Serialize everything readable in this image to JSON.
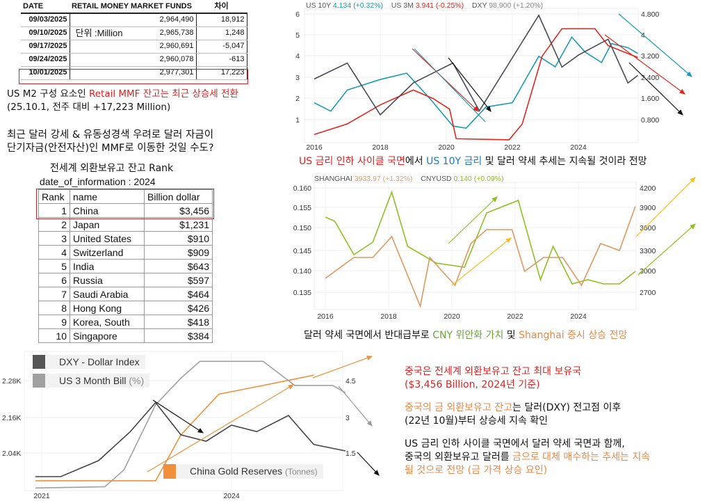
{
  "mmf_table": {
    "headers": [
      "DATE",
      "RETAIL MONEY MARKET FUNDS",
      "차이"
    ],
    "unit": "단위 :Million",
    "rows": [
      [
        "09/03/2025",
        "2,964,490",
        "18,912"
      ],
      [
        "09/10/2025",
        "2,965,738",
        "1,248"
      ],
      [
        "09/17/2025",
        "2,960,691",
        "-5,047"
      ],
      [
        "09/24/2025",
        "2,960,078",
        "-613"
      ],
      [
        "10/01/2025",
        "2,977,301",
        "17,223"
      ]
    ]
  },
  "note1": {
    "a": "US M2 구성 요소인 ",
    "b": "Retail MMF 잔고는 최근 상승세 전환",
    "c": "(25.10.1, 전주 대비 +17,223 Million)"
  },
  "note2": {
    "l1": "최근 달러 강세 & 유동성경색 우려로 달러 자금이",
    "l2": "단기자금(안전자산)인 MMF로 이동한 것일 수도?"
  },
  "rank_table": {
    "title": "전세계 외환보유고 잔고 Rank",
    "subtitle": "date_of_information : 2024",
    "headers": [
      "Rank",
      "name",
      "Billion dollar"
    ],
    "rows": [
      [
        "1",
        "China",
        "$3,456"
      ],
      [
        "2",
        "Japan",
        "$1,231"
      ],
      [
        "3",
        "United States",
        "$910"
      ],
      [
        "4",
        "Switzerland",
        "$909"
      ],
      [
        "5",
        "India",
        "$643"
      ],
      [
        "6",
        "Russia",
        "$597"
      ],
      [
        "7",
        "Saudi Arabia",
        "$464"
      ],
      [
        "8",
        "Hong Kong",
        "$426"
      ],
      [
        "9",
        "Korea, South",
        "$418"
      ],
      [
        "10",
        "Singapore",
        "$384"
      ]
    ]
  },
  "caption1": {
    "a": "US 금리 인하 사이클 국면",
    "b": "에서 ",
    "c": "US 10Y 금리",
    "d": " 및 달러 약세 추세는 지속될 것이라 전망"
  },
  "caption2": {
    "a": "달러 약세 국면에서 반대급부로 ",
    "b": "CNY 위안화 가치",
    "c": " 및 ",
    "d": "Shanghai 증시 상승 전망"
  },
  "right_notes": {
    "p1a": "중국은 전세계 외환보유고 잔고 최대 보유국",
    "p1b": "($3,456 Billion, 2024년 기준)",
    "p2a": "중국의 금 외환보유고 잔고",
    "p2b": "는 달러(DXY) 전고점 이후",
    "p2c": "(22년 10월)부터 상승세 지속 확인",
    "p3a": "US 금리 인하 사이클 국면에서 달러 약세 국면과 함께,",
    "p3b": "중국의 외환보유고 달러를 ",
    "p3c": "금으로 대체 매수하는 추세는 지속",
    "p3d": "될 것으로 전망 (금 가격 상승 요인)"
  },
  "colors": {
    "us10y": "#1a9bb0",
    "us3m": "#e0261e",
    "dxy": "#4a4a55",
    "cnyusd": "#8fbf24",
    "shanghai": "#e0975f",
    "gold": "#f0903c",
    "bill": "#a0a0a0",
    "dxy2": "#444444"
  },
  "chart_data": [
    {
      "type": "line",
      "legend": [
        {
          "name": "US 10Y",
          "value": "4.134",
          "change": "(+0.32%)"
        },
        {
          "name": "US 3M",
          "value": "3.941",
          "change": "(-0.25%)"
        },
        {
          "name": "DXY",
          "value": "98.900",
          "change": "(+1.20%)"
        }
      ],
      "yticks_left": [
        "6",
        "5",
        "4",
        "3",
        "2",
        "1"
      ],
      "yticks_right": [
        "4.800",
        "4",
        "3.200",
        "2.400",
        "1.600",
        "0.800"
      ],
      "xticks": [
        "2016",
        "2018",
        "2020",
        "2022",
        "2024"
      ],
      "series": [
        {
          "name": "US 10Y",
          "x": [
            2016,
            2016.5,
            2017,
            2018,
            2018.8,
            2019.5,
            2020.2,
            2020.6,
            2021.2,
            2022,
            2022.8,
            2023.3,
            2023.8,
            2024.2,
            2024.7,
            2025,
            2025.5,
            2025.8
          ],
          "y": [
            1.8,
            1.4,
            2.4,
            2.9,
            3.2,
            2.0,
            0.7,
            0.6,
            1.6,
            1.8,
            4.0,
            3.5,
            4.9,
            4.2,
            3.7,
            4.6,
            4.4,
            4.13
          ]
        },
        {
          "name": "US 3M",
          "x": [
            2016,
            2017,
            2018,
            2019,
            2019.6,
            2020.1,
            2020.3,
            2021.9,
            2022.3,
            2022.9,
            2023.5,
            2024.5,
            2024.9,
            2025.8
          ],
          "y": [
            0.3,
            0.8,
            1.7,
            2.4,
            2.0,
            1.5,
            0.1,
            0.05,
            0.8,
            4.0,
            5.3,
            5.3,
            4.5,
            3.94
          ]
        },
        {
          "name": "DXY",
          "x": [
            2016,
            2017,
            2018,
            2019,
            2020.2,
            2021,
            2022.8,
            2023.5,
            2024,
            2024.9,
            2025.5,
            2025.8
          ],
          "y": [
            98,
            102,
            89,
            97,
            102,
            90,
            114,
            101,
            104,
            108,
            97,
            98.9
          ]
        }
      ]
    },
    {
      "type": "line",
      "legend": [
        {
          "name": "SHANGHAI",
          "value": "3933.97",
          "change": "(+1.32%)"
        },
        {
          "name": "CNYUSD",
          "value": "0.140",
          "change": "(+0.09%)"
        }
      ],
      "yticks_left": [
        "0.160",
        "0.155",
        "0.150",
        "0.145",
        "0.140",
        "0.135"
      ],
      "yticks_right": [
        "4200",
        "3900",
        "3600",
        "3300",
        "3000",
        "2700"
      ],
      "xticks": [
        "2016",
        "2018",
        "2020",
        "2022",
        "2024"
      ],
      "series": [
        {
          "name": "CNYUSD",
          "x": [
            2016,
            2016.3,
            2016.9,
            2017.5,
            2018.1,
            2018.6,
            2019.5,
            2020.4,
            2021.1,
            2022.1,
            2022.8,
            2023.2,
            2023.8,
            2024.3,
            2024.8,
            2025.3,
            2025.8
          ],
          "y": [
            0.153,
            0.152,
            0.144,
            0.147,
            0.159,
            0.146,
            0.142,
            0.141,
            0.154,
            0.157,
            0.138,
            0.146,
            0.137,
            0.138,
            0.137,
            0.137,
            0.14
          ]
        },
        {
          "name": "SHANGHAI",
          "x": [
            2016,
            2016.9,
            2017.5,
            2018.1,
            2019,
            2019.3,
            2020.1,
            2020.6,
            2021.1,
            2021.9,
            2022.3,
            2022.9,
            2023.5,
            2024.1,
            2024.7,
            2025.3,
            2025.8
          ],
          "y": [
            2900,
            3200,
            3200,
            3500,
            2500,
            3200,
            2800,
            3400,
            3600,
            3600,
            3000,
            3200,
            3200,
            2800,
            3400,
            3300,
            3934
          ]
        }
      ]
    },
    {
      "type": "line",
      "legend": [
        {
          "name": "DXY - Dollar Index"
        },
        {
          "name": "US 3 Month Bill",
          "unit": "(%)"
        },
        {
          "name": "China Gold Reserves",
          "unit": "(Tonnes)"
        }
      ],
      "yticks_left": [
        "2.28K",
        "2.16K",
        "2.04K"
      ],
      "yticks_right": [
        "4.5",
        "3",
        "1.5"
      ],
      "xticks": [
        "2021",
        "2024"
      ],
      "series": [
        {
          "name": "China Gold Reserves",
          "x": [
            2020.9,
            2022.8,
            2023.2,
            2023.8,
            2024.5,
            2025.3
          ],
          "y": [
            1948,
            1948,
            2100,
            2235,
            2264,
            2298
          ]
        },
        {
          "name": "US 3 Month Bill",
          "x": [
            2020.9,
            2022,
            2022.3,
            2022.8,
            2023.2,
            2023.5,
            2024.5,
            2024.7,
            2025,
            2025.6,
            2025.8
          ],
          "y": [
            0.05,
            0.1,
            0.8,
            3.5,
            4.6,
            5.3,
            5.3,
            4.9,
            4.3,
            4.3,
            4.0
          ]
        },
        {
          "name": "DXY - Dollar Index",
          "x": [
            2020.9,
            2021.3,
            2021.9,
            2022.4,
            2022.8,
            2023.2,
            2023.6,
            2024,
            2024.4,
            2024.9,
            2025.3,
            2025.8
          ],
          "y": [
            90,
            90,
            95,
            104,
            113,
            103,
            101,
            106,
            104,
            109,
            100,
            98
          ]
        }
      ]
    }
  ]
}
